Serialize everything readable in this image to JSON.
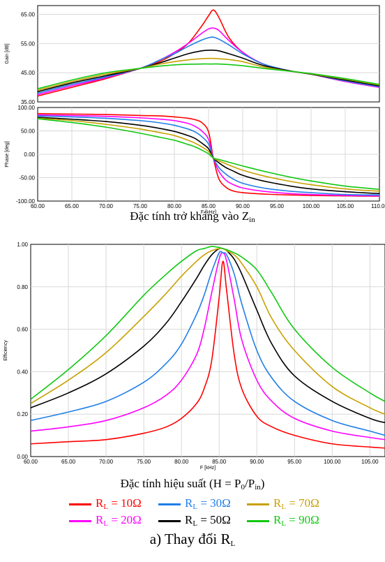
{
  "captions": {
    "impedance": "Đặc tính trở kháng vào Z",
    "impedance_sub": "in",
    "efficiency": "Đặc tính hiệu suất (H = P",
    "efficiency_sub0": "0",
    "efficiency_mid": "/P",
    "efficiency_sub1": "in",
    "efficiency_end": ")",
    "figure": "a) Thay đổi R",
    "figure_sub": "L"
  },
  "legend": [
    {
      "pre": "R",
      "sub": "L",
      "post": " = 10Ω",
      "color": "#ff0000"
    },
    {
      "pre": "R",
      "sub": "L",
      "post": " = 30Ω",
      "color": "#1f7ee8"
    },
    {
      "pre": "R",
      "sub": "L",
      "post": " = 70Ω",
      "color": "#c8a000"
    },
    {
      "pre": "R",
      "sub": "L",
      "post": " = 20Ω",
      "color": "#ff00ff"
    },
    {
      "pre": "R",
      "sub": "L",
      "post": " = 50Ω",
      "color": "#000000"
    },
    {
      "pre": "R",
      "sub": "L",
      "post": " = 90Ω",
      "color": "#11c811"
    }
  ],
  "chart_data": [
    {
      "id": "gain",
      "type": "line",
      "xlabel": "",
      "ylabel": "Gain [dB]",
      "xlim": [
        60,
        110
      ],
      "ylim": [
        35,
        68
      ],
      "yticks": [
        "35.00",
        "45.00",
        "55.00",
        "65.00"
      ],
      "ytick_values": [
        35,
        45,
        55,
        65
      ],
      "xticks": [],
      "x": [
        60,
        65,
        70,
        75,
        78,
        80,
        82,
        84,
        85,
        85.7,
        86.5,
        88,
        90,
        93,
        97,
        100,
        105,
        110
      ],
      "series": [
        {
          "name": "R_L = 10Ω",
          "color": "#ff0000",
          "values": [
            37,
            40,
            43,
            46.5,
            49,
            51.5,
            55,
            61,
            64.5,
            66.5,
            64,
            57,
            52,
            48,
            45.6,
            44.5,
            42,
            40
          ]
        },
        {
          "name": "R_L = 20Ω",
          "color": "#ff00ff",
          "values": [
            37.5,
            40.5,
            43.3,
            46.5,
            49.5,
            52,
            55,
            58.5,
            60,
            60.3,
            59.5,
            56,
            52,
            48,
            45.6,
            44.5,
            42,
            40
          ]
        },
        {
          "name": "R_L = 30Ω",
          "color": "#1f7ee8",
          "values": [
            38,
            41,
            43.6,
            46.5,
            49.5,
            51.5,
            54,
            56.2,
            57,
            57.2,
            56.5,
            54.5,
            51.5,
            48,
            45.6,
            44.5,
            42.2,
            40.2
          ]
        },
        {
          "name": "R_L = 50Ω",
          "color": "#000000",
          "values": [
            38.5,
            41.5,
            44,
            46.5,
            48.5,
            50,
            51.5,
            52.5,
            52.7,
            52.7,
            52.5,
            51.5,
            50,
            47.5,
            45.6,
            44.5,
            42.5,
            40.5
          ]
        },
        {
          "name": "R_L = 70Ω",
          "color": "#c8a000",
          "values": [
            39,
            42,
            44.5,
            46.5,
            48,
            48.8,
            49.4,
            49.8,
            49.9,
            49.9,
            49.8,
            49.5,
            48.8,
            47,
            45.5,
            44.6,
            42.8,
            40.8
          ]
        },
        {
          "name": "R_L = 90Ω",
          "color": "#11c811",
          "values": [
            39.5,
            42.5,
            45,
            46.5,
            47.3,
            47.7,
            47.9,
            48,
            48,
            48,
            48,
            47.8,
            47.4,
            46.5,
            45.5,
            44.7,
            43,
            41
          ]
        }
      ]
    },
    {
      "id": "phase",
      "type": "line",
      "xlabel": "F [kHz]",
      "ylabel": "Phase [deg]",
      "xlim": [
        60,
        110
      ],
      "ylim": [
        -100,
        100
      ],
      "yticks": [
        "-100.00",
        "-50.00",
        "0.00",
        "50.00",
        "100.00"
      ],
      "ytick_values": [
        -100,
        -50,
        0,
        50,
        100
      ],
      "xticks": [
        "60.00",
        "65.00",
        "70.00",
        "75.00",
        "80.00",
        "85.00",
        "90.00",
        "95.00",
        "100.00",
        "105.00",
        "110.00"
      ],
      "xtick_values": [
        60,
        65,
        70,
        75,
        80,
        85,
        90,
        95,
        100,
        105,
        110
      ],
      "x": [
        60,
        65,
        70,
        75,
        78,
        80,
        82,
        83,
        84,
        85,
        85.7,
        86.5,
        87.5,
        88.5,
        90,
        93,
        97,
        100,
        105,
        110
      ],
      "series": [
        {
          "name": "R_L = 10Ω",
          "color": "#ff0000",
          "values": [
            87,
            86,
            85,
            83,
            82,
            80,
            77,
            74,
            68,
            48,
            -8,
            -52,
            -70,
            -78,
            -82,
            -85,
            -87,
            -88,
            -89,
            -89.5
          ]
        },
        {
          "name": "R_L = 20Ω",
          "color": "#ff00ff",
          "values": [
            84,
            83,
            81,
            78,
            75,
            72,
            66,
            60,
            50,
            32,
            -8,
            -36,
            -55,
            -64,
            -72,
            -79,
            -84,
            -86,
            -88,
            -89
          ]
        },
        {
          "name": "R_L = 30Ω",
          "color": "#1f7ee8",
          "values": [
            82,
            80,
            77,
            72,
            67,
            62,
            54,
            48,
            38,
            22,
            -8,
            -28,
            -42,
            -52,
            -62,
            -72,
            -79,
            -82,
            -86,
            -87
          ]
        },
        {
          "name": "R_L = 50Ω",
          "color": "#000000",
          "values": [
            79,
            75,
            70,
            62,
            55,
            49,
            40,
            34,
            24,
            12,
            -8,
            -18,
            -28,
            -35,
            -45,
            -57,
            -68,
            -74,
            -80,
            -84
          ]
        },
        {
          "name": "R_L = 70Ω",
          "color": "#c8a000",
          "values": [
            77,
            72,
            64,
            54,
            46,
            40,
            30,
            24,
            16,
            6,
            -8,
            -14,
            -20,
            -26,
            -34,
            -46,
            -58,
            -65,
            -74,
            -79
          ]
        },
        {
          "name": "R_L = 90Ω",
          "color": "#11c811",
          "values": [
            76,
            68,
            58,
            45,
            36,
            30,
            21,
            16,
            9,
            1,
            -8,
            -11,
            -15,
            -19,
            -25,
            -36,
            -49,
            -57,
            -68,
            -75
          ]
        }
      ]
    },
    {
      "id": "efficiency",
      "type": "line",
      "xlabel": "F [kHz]",
      "ylabel": "Efficiency",
      "xlim": [
        60,
        107
      ],
      "ylim": [
        0,
        1
      ],
      "yticks": [
        "0.00",
        "0.20",
        "0.40",
        "0.60",
        "0.80",
        "1.00"
      ],
      "ytick_values": [
        0,
        0.2,
        0.4,
        0.6,
        0.8,
        1.0
      ],
      "xticks": [
        "60.00",
        "65.00",
        "70.00",
        "75.00",
        "80.00",
        "85.00",
        "90.00",
        "95.00",
        "100.00",
        "105.00"
      ],
      "xtick_values": [
        60,
        65,
        70,
        75,
        80,
        85,
        90,
        95,
        100,
        105
      ],
      "x": [
        60,
        65,
        70,
        75,
        78,
        80,
        82,
        83,
        84,
        85,
        85.5,
        86,
        87,
        88,
        90,
        92,
        95,
        100,
        105,
        107
      ],
      "series": [
        {
          "name": "R_L = 10Ω",
          "color": "#ff0000",
          "values": [
            0.06,
            0.07,
            0.08,
            0.11,
            0.14,
            0.18,
            0.25,
            0.32,
            0.45,
            0.75,
            0.92,
            0.78,
            0.48,
            0.32,
            0.19,
            0.14,
            0.1,
            0.06,
            0.045,
            0.04
          ]
        },
        {
          "name": "R_L = 20Ω",
          "color": "#ff00ff",
          "values": [
            0.12,
            0.14,
            0.17,
            0.23,
            0.29,
            0.36,
            0.48,
            0.6,
            0.77,
            0.93,
            0.96,
            0.92,
            0.74,
            0.55,
            0.36,
            0.26,
            0.18,
            0.12,
            0.09,
            0.08
          ]
        },
        {
          "name": "R_L = 30Ω",
          "color": "#1f7ee8",
          "values": [
            0.17,
            0.21,
            0.26,
            0.35,
            0.44,
            0.53,
            0.67,
            0.76,
            0.87,
            0.96,
            0.96,
            0.95,
            0.86,
            0.72,
            0.5,
            0.37,
            0.26,
            0.17,
            0.12,
            0.1
          ]
        },
        {
          "name": "R_L = 50Ω",
          "color": "#000000",
          "values": [
            0.23,
            0.3,
            0.39,
            0.52,
            0.63,
            0.73,
            0.84,
            0.9,
            0.95,
            0.98,
            0.98,
            0.97,
            0.93,
            0.86,
            0.69,
            0.53,
            0.38,
            0.26,
            0.18,
            0.16
          ]
        },
        {
          "name": "R_L = 70Ω",
          "color": "#c8a000",
          "values": [
            0.25,
            0.36,
            0.49,
            0.66,
            0.77,
            0.85,
            0.92,
            0.95,
            0.97,
            0.98,
            0.98,
            0.97,
            0.95,
            0.91,
            0.8,
            0.65,
            0.5,
            0.33,
            0.23,
            0.2
          ]
        },
        {
          "name": "R_L = 90Ω",
          "color": "#11c811",
          "values": [
            0.27,
            0.41,
            0.57,
            0.76,
            0.86,
            0.92,
            0.97,
            0.98,
            0.99,
            0.985,
            0.98,
            0.975,
            0.96,
            0.94,
            0.88,
            0.77,
            0.6,
            0.42,
            0.3,
            0.26
          ]
        }
      ]
    }
  ]
}
